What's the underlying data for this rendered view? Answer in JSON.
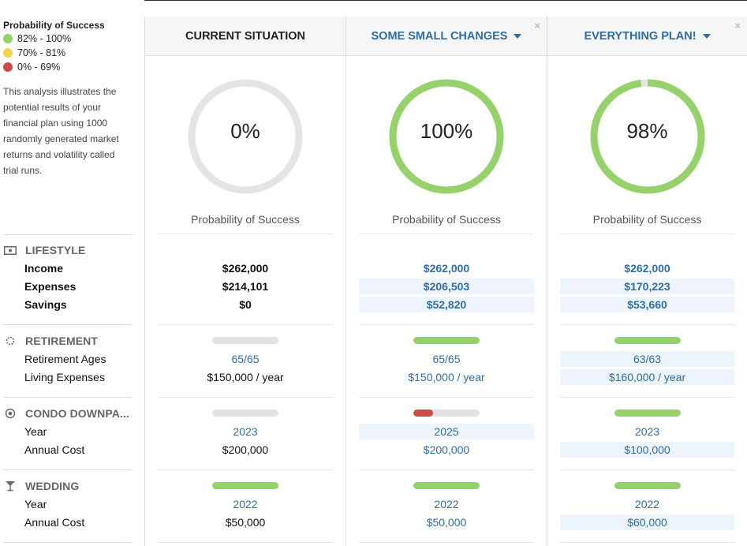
{
  "legend": {
    "title": "Probability of Success",
    "items": [
      {
        "label": "82% - 100%",
        "color": "#95d26a"
      },
      {
        "label": "70% - 81%",
        "color": "#f2d54a"
      },
      {
        "label": "0% - 69%",
        "color": "#cc4b4b"
      }
    ]
  },
  "description": "This analysis illustrates the potential results of your financial plan using 1000 randomly generated market returns and volatility called trial runs.",
  "sections": {
    "lifestyle": {
      "title": "LIFESTYLE",
      "rows": [
        "Income",
        "Expenses",
        "Savings"
      ]
    },
    "retirement": {
      "title": "RETIREMENT",
      "rows": [
        "Retirement Ages",
        "Living Expenses"
      ]
    },
    "condo": {
      "title": "CONDO DOWNPA...",
      "rows": [
        "Year",
        "Annual Cost"
      ]
    },
    "wedding": {
      "title": "WEDDING",
      "rows": [
        "Year",
        "Annual Cost"
      ]
    }
  },
  "prob_label": "Probability of Success",
  "colors": {
    "green": "#95d26a",
    "red": "#cc4b4b",
    "gray": "#e2e2e2",
    "link": "#2f6da4"
  },
  "scenarios": [
    {
      "name": "CURRENT SITUATION",
      "dropdown": false,
      "closable": false,
      "probability": 0,
      "probability_text": "0%",
      "lifestyle": {
        "income": "$262,000",
        "expenses": "$214,101",
        "savings": "$0"
      },
      "retirement": {
        "progress": 0,
        "ages": "65/65",
        "living_expenses": "$150,000 / year"
      },
      "condo": {
        "progress": 0,
        "year": "2023",
        "annual_cost": "$200,000"
      },
      "wedding": {
        "progress": 1,
        "year": "2022",
        "annual_cost": "$50,000"
      }
    },
    {
      "name": "SOME SMALL CHANGES",
      "dropdown": true,
      "closable": true,
      "probability": 100,
      "probability_text": "100%",
      "lifestyle": {
        "income": "$262,000",
        "expenses": "$206,503",
        "savings": "$52,820"
      },
      "retirement": {
        "progress": 1,
        "ages": "65/65",
        "living_expenses": "$150,000 / year"
      },
      "condo": {
        "progress": 0.3,
        "year": "2025",
        "annual_cost": "$200,000"
      },
      "wedding": {
        "progress": 1,
        "year": "2022",
        "annual_cost": "$50,000"
      }
    },
    {
      "name": "EVERYTHING PLAN!",
      "dropdown": true,
      "closable": true,
      "probability": 98,
      "probability_text": "98%",
      "lifestyle": {
        "income": "$262,000",
        "expenses": "$170,223",
        "savings": "$53,660"
      },
      "retirement": {
        "progress": 1,
        "ages": "63/63",
        "living_expenses": "$160,000 / year"
      },
      "condo": {
        "progress": 1,
        "year": "2023",
        "annual_cost": "$100,000"
      },
      "wedding": {
        "progress": 1,
        "year": "2022",
        "annual_cost": "$60,000"
      }
    }
  ],
  "close_symbol": "×"
}
